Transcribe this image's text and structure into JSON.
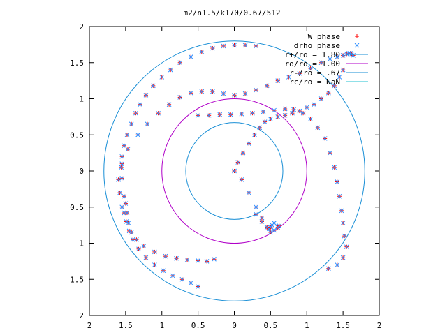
{
  "chart_data": {
    "type": "scatter",
    "title": "m2/n1.5/k170/0.67/512",
    "xlim": [
      -2,
      2
    ],
    "ylim": [
      -2,
      2
    ],
    "x_ticks": [
      -2,
      -1.5,
      -1,
      -0.5,
      0,
      0.5,
      1,
      1.5,
      2
    ],
    "y_ticks": [
      -2,
      -1.5,
      -1,
      -0.5,
      0,
      0.5,
      1,
      1.5,
      2
    ],
    "x_tick_labels": [
      "2",
      "1.5",
      "1",
      "0.5",
      "0",
      "0.5",
      "1",
      "1.5",
      "2"
    ],
    "y_tick_labels": [
      "2",
      "1.5",
      "1",
      "0.5",
      "0",
      "0.5",
      "1",
      "1.5",
      "2"
    ],
    "grid": false,
    "legend_position": "top-right",
    "legend": [
      {
        "label": "W phase",
        "marker": "plus",
        "color": "#ff0000"
      },
      {
        "label": "drho phase",
        "marker": "cross",
        "color": "#2f8fff"
      },
      {
        "label": "r+/ro = 1.80",
        "line": true,
        "color": "#1a8fd6"
      },
      {
        "label": "ro/ro = 1.00",
        "line": true,
        "color": "#b000c8"
      },
      {
        "label": "r-/ro = .67",
        "line": true,
        "color": "#1a8fd6"
      },
      {
        "label": "rc/ro = NaN",
        "line": true,
        "color": "#20c0d0"
      }
    ],
    "circles": [
      {
        "name": "r+/ro = 1.80",
        "r": 1.8,
        "color": "#1a8fd6"
      },
      {
        "name": "ro/ro = 1.00",
        "r": 1.0,
        "color": "#b000c8"
      },
      {
        "name": "r-/ro = .67",
        "r": 0.67,
        "color": "#1a8fd6"
      }
    ],
    "series": [
      {
        "name": "W phase",
        "marker": "plus",
        "color": "#ff0000",
        "x": [
          -0.28,
          -0.38,
          -0.5,
          -0.65,
          -0.8,
          -0.95,
          -1.1,
          -1.25,
          -1.35,
          -1.42,
          -1.46,
          -1.48,
          -1.5,
          -1.52,
          -1.55,
          -1.56,
          -1.55,
          -1.52,
          -1.48,
          -1.42,
          -1.36,
          -1.3,
          -1.22,
          -1.12,
          -1.0,
          -0.88,
          -0.75,
          -0.6,
          -0.45,
          -0.3,
          -0.15,
          0.0,
          0.15,
          0.3,
          -0.5,
          -0.6,
          -0.72,
          -0.85,
          -0.98,
          -1.1,
          -1.22,
          -1.32,
          -1.4,
          -1.45,
          -1.49,
          -1.52,
          -1.55,
          -1.58,
          -1.6,
          -1.55,
          -1.47,
          -1.33,
          -1.2,
          -1.05,
          -0.9,
          -0.75,
          -0.6,
          -0.45,
          -0.3,
          -0.15,
          0.0,
          0.15,
          0.3,
          0.45,
          0.6,
          0.75,
          0.9,
          1.05,
          1.2,
          1.32,
          1.42,
          1.5,
          1.55,
          1.58,
          1.6,
          1.62,
          1.64,
          1.5,
          1.45,
          1.38,
          1.3,
          1.2,
          1.1,
          1.0,
          0.9,
          0.8,
          0.7,
          0.6,
          0.5,
          0.42,
          0.35,
          0.28,
          0.2,
          0.12,
          0.05,
          0.0,
          0.1,
          0.2,
          0.3,
          0.38,
          0.45,
          0.5,
          0.55,
          0.6,
          0.62,
          1.3,
          1.42,
          1.5,
          1.55,
          1.52,
          1.5,
          1.48,
          1.45,
          1.42,
          1.38,
          1.32,
          1.25,
          1.15,
          1.05,
          0.95,
          0.82,
          0.7,
          0.55,
          0.4,
          0.25,
          0.1,
          -0.05,
          -0.2,
          -0.35,
          -0.5,
          0.3,
          0.38,
          0.45,
          0.48,
          0.5,
          0.52,
          0.55
        ],
        "y": [
          -1.22,
          -1.25,
          -1.24,
          -1.23,
          -1.21,
          -1.18,
          -1.12,
          -1.04,
          -0.95,
          -0.85,
          -0.72,
          -0.58,
          -0.45,
          -0.35,
          -0.1,
          0.05,
          0.2,
          0.35,
          0.5,
          0.65,
          0.8,
          0.92,
          1.05,
          1.18,
          1.3,
          1.4,
          1.5,
          1.58,
          1.65,
          1.7,
          1.73,
          1.74,
          1.74,
          1.73,
          -1.6,
          -1.55,
          -1.5,
          -1.45,
          -1.38,
          -1.3,
          -1.2,
          -1.08,
          -0.95,
          -0.83,
          -0.7,
          -0.58,
          -0.5,
          -0.3,
          -0.12,
          0.1,
          0.3,
          0.5,
          0.65,
          0.8,
          0.92,
          1.02,
          1.08,
          1.1,
          1.1,
          1.07,
          1.05,
          1.07,
          1.12,
          1.18,
          1.25,
          1.3,
          1.35,
          1.42,
          1.5,
          1.55,
          1.58,
          1.6,
          1.62,
          1.63,
          1.63,
          1.62,
          1.6,
          1.4,
          1.3,
          1.18,
          1.08,
          1.0,
          0.92,
          0.88,
          0.83,
          0.8,
          0.77,
          0.75,
          0.72,
          0.68,
          0.6,
          0.5,
          0.38,
          0.25,
          0.12,
          0.0,
          -0.12,
          -0.3,
          -0.5,
          -0.65,
          -0.78,
          -0.85,
          -0.82,
          -0.78,
          -0.76,
          -1.35,
          -1.3,
          -1.2,
          -1.05,
          -0.9,
          -0.72,
          -0.55,
          -0.35,
          -0.15,
          0.05,
          0.25,
          0.45,
          0.6,
          0.72,
          0.8,
          0.85,
          0.86,
          0.84,
          0.82,
          0.8,
          0.79,
          0.78,
          0.78,
          0.77,
          0.77,
          -0.6,
          -0.7,
          -0.78,
          -0.8,
          -0.78,
          -0.75,
          -0.72
        ]
      },
      {
        "name": "drho phase",
        "marker": "cross",
        "color": "#2f8fff",
        "x": [
          -0.28,
          -0.38,
          -0.5,
          -0.65,
          -0.8,
          -0.95,
          -1.1,
          -1.25,
          -1.35,
          -1.42,
          -1.46,
          -1.48,
          -1.5,
          -1.52,
          -1.55,
          -1.56,
          -1.55,
          -1.52,
          -1.48,
          -1.42,
          -1.36,
          -1.3,
          -1.22,
          -1.12,
          -1.0,
          -0.88,
          -0.75,
          -0.6,
          -0.45,
          -0.3,
          -0.15,
          0.0,
          0.15,
          0.3,
          -0.5,
          -0.6,
          -0.72,
          -0.85,
          -0.98,
          -1.1,
          -1.22,
          -1.32,
          -1.4,
          -1.45,
          -1.49,
          -1.52,
          -1.55,
          -1.58,
          -1.6,
          -1.55,
          -1.47,
          -1.33,
          -1.2,
          -1.05,
          -0.9,
          -0.75,
          -0.6,
          -0.45,
          -0.3,
          -0.15,
          0.0,
          0.15,
          0.3,
          0.45,
          0.6,
          0.75,
          0.9,
          1.05,
          1.2,
          1.32,
          1.42,
          1.5,
          1.55,
          1.58,
          1.6,
          1.62,
          1.64,
          1.5,
          1.45,
          1.38,
          1.3,
          1.2,
          1.1,
          1.0,
          0.9,
          0.8,
          0.7,
          0.6,
          0.5,
          0.42,
          0.35,
          0.28,
          0.2,
          0.12,
          0.05,
          0.0,
          0.1,
          0.2,
          0.3,
          0.38,
          0.45,
          0.5,
          0.55,
          0.6,
          0.62,
          1.3,
          1.42,
          1.5,
          1.55,
          1.52,
          1.5,
          1.48,
          1.45,
          1.42,
          1.38,
          1.32,
          1.25,
          1.15,
          1.05,
          0.95,
          0.82,
          0.7,
          0.55,
          0.4,
          0.25,
          0.1,
          -0.05,
          -0.2,
          -0.35,
          -0.5,
          0.3,
          0.38,
          0.45,
          0.48,
          0.5,
          0.52,
          0.55
        ],
        "y": [
          -1.22,
          -1.25,
          -1.24,
          -1.23,
          -1.21,
          -1.18,
          -1.12,
          -1.04,
          -0.95,
          -0.85,
          -0.72,
          -0.58,
          -0.45,
          -0.35,
          -0.1,
          0.05,
          0.2,
          0.35,
          0.5,
          0.65,
          0.8,
          0.92,
          1.05,
          1.18,
          1.3,
          1.4,
          1.5,
          1.58,
          1.65,
          1.7,
          1.73,
          1.74,
          1.74,
          1.73,
          -1.6,
          -1.55,
          -1.5,
          -1.45,
          -1.38,
          -1.3,
          -1.2,
          -1.08,
          -0.95,
          -0.83,
          -0.7,
          -0.58,
          -0.5,
          -0.3,
          -0.12,
          0.1,
          0.3,
          0.5,
          0.65,
          0.8,
          0.92,
          1.02,
          1.08,
          1.1,
          1.1,
          1.07,
          1.05,
          1.07,
          1.12,
          1.18,
          1.25,
          1.3,
          1.35,
          1.42,
          1.5,
          1.55,
          1.58,
          1.6,
          1.62,
          1.63,
          1.63,
          1.62,
          1.6,
          1.4,
          1.3,
          1.18,
          1.08,
          1.0,
          0.92,
          0.88,
          0.83,
          0.8,
          0.77,
          0.75,
          0.72,
          0.68,
          0.6,
          0.5,
          0.38,
          0.25,
          0.12,
          0.0,
          -0.12,
          -0.3,
          -0.5,
          -0.65,
          -0.78,
          -0.85,
          -0.82,
          -0.78,
          -0.76,
          -1.35,
          -1.3,
          -1.2,
          -1.05,
          -0.9,
          -0.72,
          -0.55,
          -0.35,
          -0.15,
          0.05,
          0.25,
          0.45,
          0.6,
          0.72,
          0.8,
          0.85,
          0.86,
          0.84,
          0.82,
          0.8,
          0.79,
          0.78,
          0.78,
          0.77,
          0.77,
          -0.6,
          -0.7,
          -0.78,
          -0.8,
          -0.78,
          -0.75,
          -0.72
        ]
      }
    ]
  }
}
